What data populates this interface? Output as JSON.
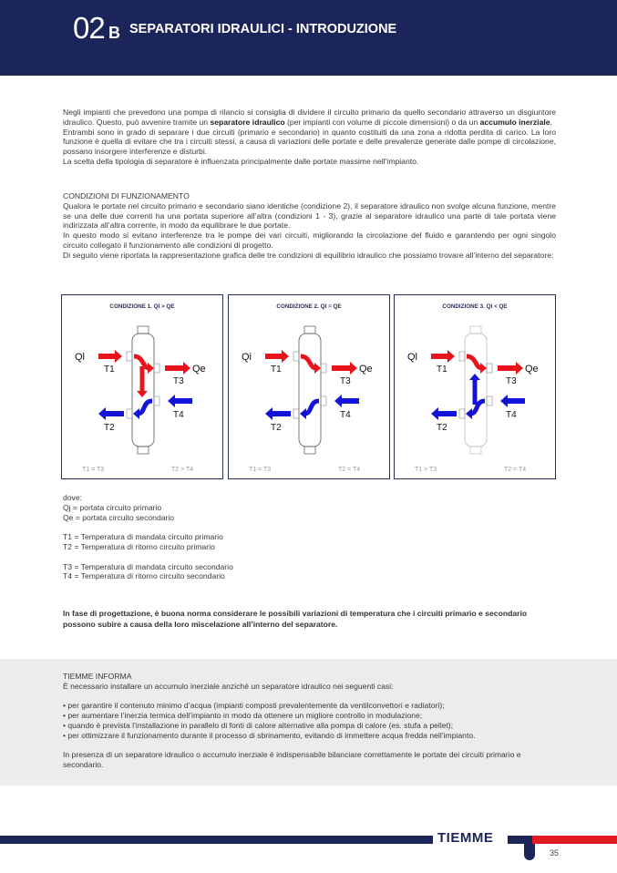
{
  "header": {
    "number": "02",
    "sub": "B",
    "title": "SEPARATORI IDRAULICI - INTRODUZIONE"
  },
  "intro": {
    "p1_a": "Negli impianti che prevedono una pompa di rilancio si consiglia di dividere il circuito primario da quello secondario attraverso un disgiuntore idraulico. Questo, può avvenire tramite un ",
    "p1_b": "separatore idraulico",
    "p1_c": " (per impianti con volume di piccole dimensioni) o da un ",
    "p1_d": "accumulo inerziale",
    "p1_e": ".",
    "p2": "Entrambi sono in grado di separare i due circuiti (primario e secondario) in quanto costituiti da una zona a ridotta perdita di carico. La loro funzione è quella di evitare che tra i circuiti stessi, a causa di variazioni delle portate e delle prevalenze generate dalle pompe di circolazione, possano insorgere interferenze e disturbi.",
    "p3": "La scelta della tipologia di separatore è influenzata principalmente dalle portate massime nell’impianto."
  },
  "conditions": {
    "heading": "CONDIZIONI DI FUNZIONAMENTO",
    "p1": "Qualora le portate nel circuito primario e secondario siano identiche (condizione 2), il separatore idraulico non svolge alcuna funzione, mentre se una delle due correnti ha una portata superiore all’altra (condizioni 1 - 3), grazie al separatore idraulico una parte di tale portata viene indirizzata all’altra corrente, in modo da equilibrare le due portate.",
    "p2": "In questo modo si evitano interferenze tra le pompe dei vari circuiti, migliorando la circolazione del fluido e garantendo per ogni singolo circuito collegato il funzionamento alle condizioni di progetto.",
    "p3": "Di seguito viene riportata la rappresentazione grafica delle tre condizioni di equilibrio idraulico che possiamo trovare all’interno del separatore:"
  },
  "diagrams": [
    {
      "title": "CONDIZIONE 1. QI > QE",
      "qi": "Ql",
      "qe": "Qe",
      "t1": "T1",
      "t2": "T2",
      "t3": "T3",
      "t4": "T4",
      "left_eq": "T1 = T3",
      "right_eq": "T2 > T4",
      "mode": "1"
    },
    {
      "title": "CONDIZIONE 2. QI = QE",
      "qi": "Qi",
      "qe": "Qe",
      "t1": "T1",
      "t2": "T2",
      "t3": "T3",
      "t4": "T4",
      "left_eq": "T1 = T3",
      "right_eq": "T2 = T4",
      "mode": "2"
    },
    {
      "title": "CONDIZIONE 3. QI < QE",
      "qi": "Ql",
      "qe": "Qe",
      "t1": "T1",
      "t2": "T2",
      "t3": "T3",
      "t4": "T4",
      "left_eq": "T1 > T3",
      "right_eq": "T2 = T4",
      "mode": "3"
    }
  ],
  "colors": {
    "hot": "#e8141b",
    "cold": "#1414d8",
    "navy": "#1c2559",
    "brand_red": "#e01a22"
  },
  "legend": {
    "intro": "dove:",
    "qi": "Qj = portata circuito primario",
    "qe": "Qe = portata circuito secondario",
    "t1": "T1 = Temperatura di mandata circuito primario",
    "t2": "T2 = Temperatura di ritorno circuito primario",
    "t3": "T3 = Temperatura di mandata circuito secondario",
    "t4": "T4 = Temperatura di ritorno circuito secondario"
  },
  "note": "In fase di progettazione, è buona norma considerare le possibili variazioni di temperatura che i circuiti primario e secondario possono subire a causa della loro miscelazione all’interno del separatore.",
  "info": {
    "heading": "TIEMME INFORMA",
    "intro": "È necessario installare un accumulo inerziale anziché un separatore idraulico nei seguenti casi:",
    "bullets": [
      "• per garantire il contenuto minimo d’acqua (impianti composti prevalentemente da ventilconvettori e radiatori);",
      "• per aumentare l’inerzia termica dell’impianto in modo da ottenere un migliore controllo in modulazione;",
      "• quando è prevista l’installazione in parallelo di fonti di calore alternative alla pompa di calore (es. stufa a pellet);",
      "• per ottimizzare il funzionamento durante il processo di sbrinamento, evitando di immettere acqua fredda nell’impianto."
    ],
    "closing": "In presenza di un separatore idraulico o accumulo inerziale è indispensabile bilanciare correttamente le portate dei circuiti primario e secondario."
  },
  "footer": {
    "logo": "TIEMME",
    "page": "35"
  }
}
